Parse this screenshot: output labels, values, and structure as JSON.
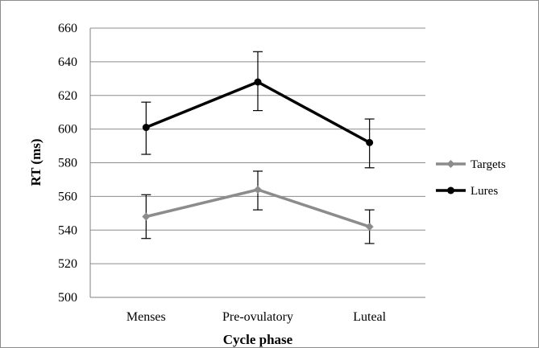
{
  "chart_data": {
    "type": "line",
    "categories": [
      "Menses",
      "Pre-ovulatory",
      "Luteal"
    ],
    "xlabel": "Cycle phase",
    "ylabel": "RT (ms)",
    "ylim": [
      500,
      660
    ],
    "yticks": [
      500,
      520,
      540,
      560,
      580,
      600,
      620,
      640,
      660
    ],
    "grid": true,
    "legend_position": "right",
    "series": [
      {
        "name": "Targets",
        "color": "#8c8c8c",
        "marker": "diamond",
        "values": [
          548,
          564,
          542
        ],
        "error_low": [
          535,
          552,
          532
        ],
        "error_high": [
          561,
          575,
          552
        ]
      },
      {
        "name": "Lures",
        "color": "#000000",
        "marker": "circle",
        "values": [
          601,
          628,
          592
        ],
        "error_low": [
          585,
          611,
          577
        ],
        "error_high": [
          616,
          646,
          606
        ]
      }
    ]
  }
}
